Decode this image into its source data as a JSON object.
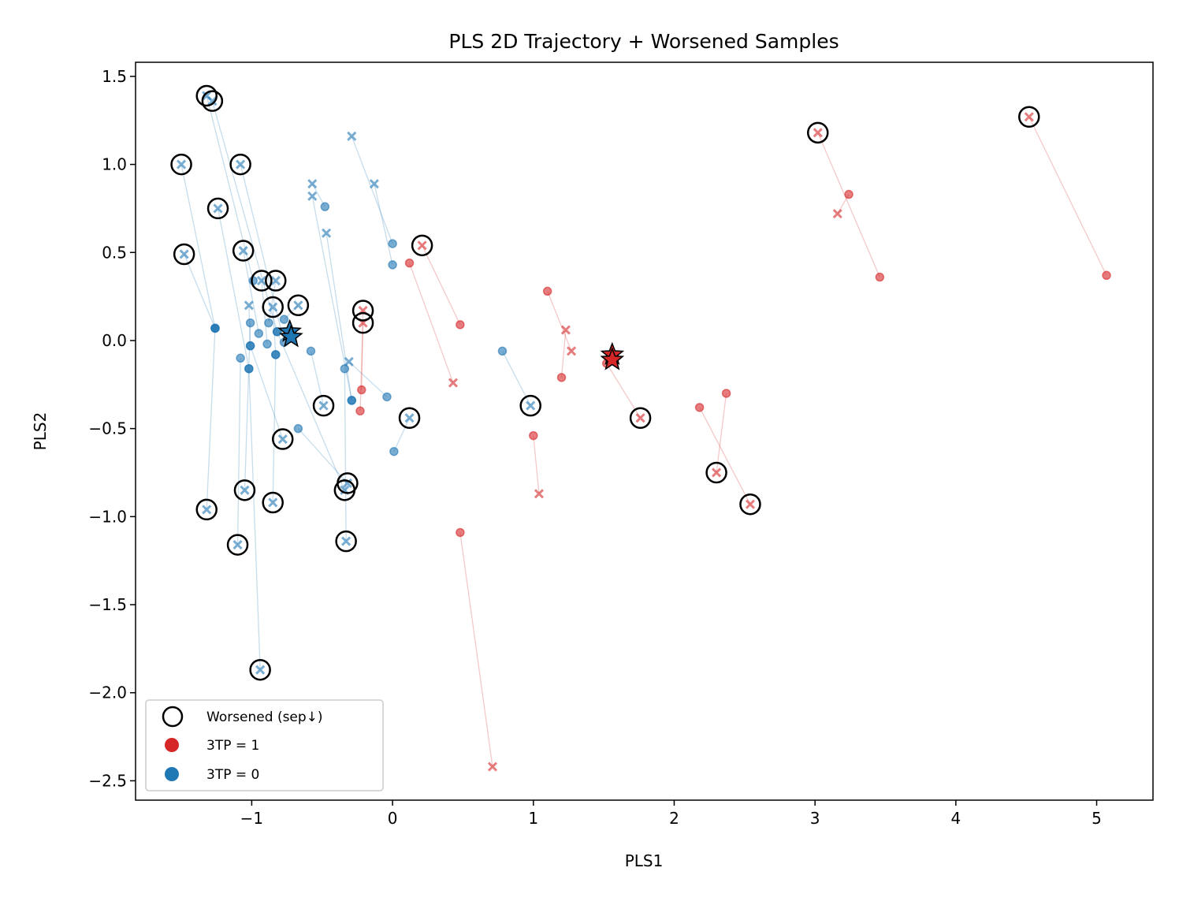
{
  "chart_data": {
    "type": "scatter",
    "title": "PLS 2D Trajectory + Worsened Samples",
    "xlabel": "PLS1",
    "ylabel": "PLS2",
    "xlim": [
      -1.825,
      5.4
    ],
    "ylim": [
      -2.61,
      1.58
    ],
    "xticks": [
      -1,
      0,
      1,
      2,
      3,
      4,
      5
    ],
    "xtick_labels": [
      "−1",
      "0",
      "1",
      "2",
      "3",
      "4",
      "5"
    ],
    "yticks": [
      1.5,
      1.0,
      0.5,
      0.0,
      -0.5,
      -1.0,
      -1.5,
      -2.0,
      -2.5
    ],
    "ytick_labels": [
      "1.5",
      "1.0",
      "0.5",
      "0.0",
      "−0.5",
      "−1.0",
      "−1.5",
      "−2.0",
      "−2.5"
    ],
    "grid": false,
    "legend": {
      "placement": "lower-left",
      "entries": [
        {
          "label": "Worsened (sep↓)",
          "marker": "open-circle",
          "color": "#000000"
        },
        {
          "label": "3TP = 1",
          "marker": "dot",
          "color": "#d62728"
        },
        {
          "label": "3TP = 0",
          "marker": "dot",
          "color": "#1f77b4"
        }
      ]
    },
    "series": [
      {
        "name": "3TP = 1",
        "color": "#d62728",
        "trajectories": [
          {
            "from": [
              5.07,
              0.37
            ],
            "to": [
              4.52,
              1.27
            ],
            "worsened": true
          },
          {
            "from": [
              3.46,
              0.36
            ],
            "to": [
              3.02,
              1.18
            ],
            "worsened": true
          },
          {
            "from": [
              3.24,
              0.83
            ],
            "to": [
              3.16,
              0.72
            ],
            "worsened": false
          },
          {
            "from": [
              2.37,
              -0.3
            ],
            "to": [
              2.3,
              -0.75
            ],
            "worsened": true
          },
          {
            "from": [
              2.18,
              -0.38
            ],
            "to": [
              2.54,
              -0.93
            ],
            "worsened": true
          },
          {
            "from": [
              1.52,
              -0.13
            ],
            "to": [
              1.76,
              -0.44
            ],
            "worsened": true
          },
          {
            "from": [
              1.2,
              -0.21
            ],
            "to": [
              1.23,
              0.06
            ],
            "worsened": false
          },
          {
            "from": [
              1.1,
              0.28
            ],
            "to": [
              1.27,
              -0.06
            ],
            "worsened": false
          },
          {
            "from": [
              1.0,
              -0.54
            ],
            "to": [
              1.04,
              -0.87
            ],
            "worsened": false
          },
          {
            "from": [
              0.48,
              -1.09
            ],
            "to": [
              0.71,
              -2.42
            ],
            "worsened": false
          },
          {
            "from": [
              0.12,
              0.44
            ],
            "to": [
              0.43,
              -0.24
            ],
            "worsened": false
          },
          {
            "from": [
              0.48,
              0.09
            ],
            "to": [
              0.21,
              0.54
            ],
            "worsened": true
          },
          {
            "from": [
              -0.22,
              -0.28
            ],
            "to": [
              -0.21,
              0.17
            ],
            "worsened": true
          },
          {
            "from": [
              -0.23,
              -0.4
            ],
            "to": [
              -0.21,
              0.1
            ],
            "worsened": true
          }
        ],
        "mean_stars": [
          [
            1.56,
            -0.08
          ],
          [
            1.56,
            -0.11
          ]
        ]
      },
      {
        "name": "3TP = 0",
        "color": "#1f77b4",
        "trajectories": [
          {
            "from": [
              -0.99,
              0.34
            ],
            "to": [
              -1.32,
              1.39
            ],
            "worsened": true
          },
          {
            "from": [
              -0.82,
              0.05
            ],
            "to": [
              -1.28,
              1.36
            ],
            "worsened": true
          },
          {
            "from": [
              -1.26,
              0.07
            ],
            "to": [
              -1.5,
              1.0
            ],
            "worsened": true
          },
          {
            "from": [
              -0.77,
              -0.01
            ],
            "to": [
              -1.08,
              1.0
            ],
            "worsened": true
          },
          {
            "from": [
              -1.02,
              -0.16
            ],
            "to": [
              -1.24,
              0.75
            ],
            "worsened": true
          },
          {
            "from": [
              -1.26,
              0.07
            ],
            "to": [
              -1.48,
              0.49
            ],
            "worsened": true
          },
          {
            "from": [
              -0.95,
              0.04
            ],
            "to": [
              -1.06,
              0.51
            ],
            "worsened": true
          },
          {
            "from": [
              -0.89,
              -0.02
            ],
            "to": [
              -0.93,
              0.34
            ],
            "worsened": true
          },
          {
            "from": [
              -0.88,
              0.1
            ],
            "to": [
              -0.83,
              0.34
            ],
            "worsened": true
          },
          {
            "from": [
              -0.83,
              -0.08
            ],
            "to": [
              -0.85,
              0.19
            ],
            "worsened": true
          },
          {
            "from": [
              -0.77,
              0.12
            ],
            "to": [
              -0.67,
              0.2
            ],
            "worsened": true
          },
          {
            "from": [
              -0.58,
              -0.06
            ],
            "to": [
              -0.49,
              -0.37
            ],
            "worsened": true
          },
          {
            "from": [
              -1.01,
              -0.03
            ],
            "to": [
              -0.78,
              -0.56
            ],
            "worsened": true
          },
          {
            "from": [
              0.01,
              -0.63
            ],
            "to": [
              0.12,
              -0.44
            ],
            "worsened": true
          },
          {
            "from": [
              0.78,
              -0.06
            ],
            "to": [
              0.98,
              -0.37
            ],
            "worsened": true
          },
          {
            "from": [
              -1.01,
              0.1
            ],
            "to": [
              -1.05,
              -0.85
            ],
            "worsened": true
          },
          {
            "from": [
              -0.67,
              -0.5
            ],
            "to": [
              -0.32,
              -0.81
            ],
            "worsened": true
          },
          {
            "from": [
              -0.82,
              0.05
            ],
            "to": [
              -0.34,
              -0.85
            ],
            "worsened": true
          },
          {
            "from": [
              -1.26,
              0.07
            ],
            "to": [
              -1.32,
              -0.96
            ],
            "worsened": true
          },
          {
            "from": [
              -0.83,
              -0.08
            ],
            "to": [
              -0.85,
              -0.92
            ],
            "worsened": true
          },
          {
            "from": [
              -1.08,
              -0.1
            ],
            "to": [
              -1.1,
              -1.16
            ],
            "worsened": true
          },
          {
            "from": [
              -0.34,
              -0.16
            ],
            "to": [
              -0.33,
              -1.14
            ],
            "worsened": true
          },
          {
            "from": [
              -1.02,
              -0.16
            ],
            "to": [
              -0.94,
              -1.87
            ],
            "worsened": true
          },
          {
            "from": [
              0.0,
              0.55
            ],
            "to": [
              -0.29,
              1.16
            ],
            "worsened": false
          },
          {
            "from": [
              0.0,
              0.43
            ],
            "to": [
              -0.13,
              0.89
            ],
            "worsened": false
          },
          {
            "from": [
              -0.48,
              0.76
            ],
            "to": [
              -0.57,
              0.89
            ],
            "worsened": false
          },
          {
            "from": [
              -0.29,
              -0.34
            ],
            "to": [
              -0.57,
              0.82
            ],
            "worsened": false
          },
          {
            "from": [
              -0.29,
              -0.34
            ],
            "to": [
              -0.47,
              0.61
            ],
            "worsened": false
          },
          {
            "from": [
              -1.01,
              -0.03
            ],
            "to": [
              -1.02,
              0.2
            ],
            "worsened": false
          },
          {
            "from": [
              -0.04,
              -0.32
            ],
            "to": [
              -0.31,
              -0.12
            ],
            "worsened": false
          }
        ],
        "mean_stars": [
          [
            -0.73,
            0.05
          ],
          [
            -0.72,
            0.02
          ]
        ]
      }
    ]
  }
}
